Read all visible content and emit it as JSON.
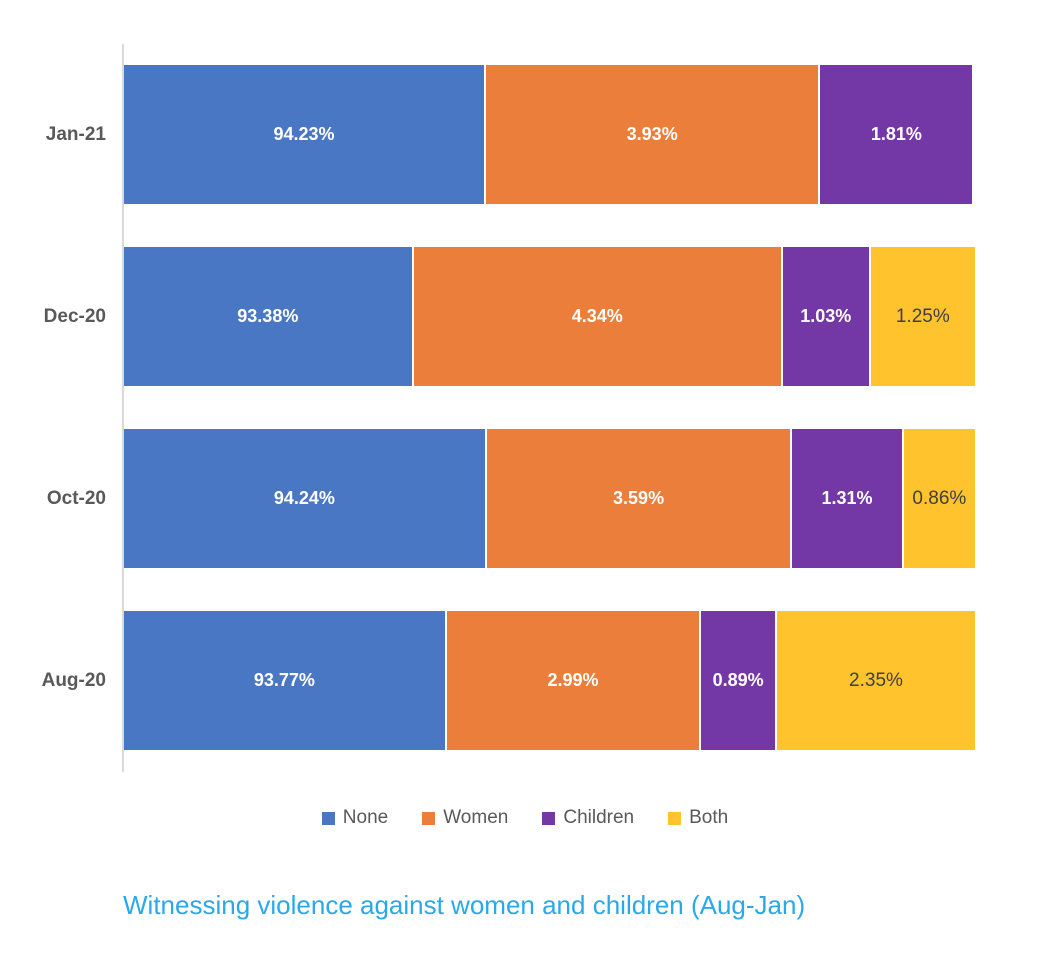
{
  "chart_data": {
    "type": "bar",
    "orientation": "horizontal-stacked",
    "title": "Witnessing violence against women and children (Aug-Jan)",
    "title_color": "#29a9ea",
    "categories": [
      "Jan-21",
      "Dec-20",
      "Oct-20",
      "Aug-20"
    ],
    "axis": {
      "min": 90,
      "max": 100,
      "gridlines": false,
      "axis_line_color": "#d9d9d9"
    },
    "legend_position": "bottom",
    "legend": [
      "None",
      "Women",
      "Children",
      "Both"
    ],
    "series_colors": {
      "None": "#4a77c4",
      "Women": "#ec7e3b",
      "Children": "#7337a6",
      "Both": "#fec32d"
    },
    "label_text_colors": {
      "on_dark_segment": "#ffffff",
      "on_yellow_segment": "#3f3f3f"
    },
    "series": [
      {
        "name": "None",
        "values": [
          94.23,
          93.38,
          94.24,
          93.77
        ]
      },
      {
        "name": "Women",
        "values": [
          3.93,
          4.34,
          3.59,
          2.99
        ]
      },
      {
        "name": "Children",
        "values": [
          1.81,
          1.03,
          1.31,
          0.89
        ]
      },
      {
        "name": "Both",
        "values": [
          null,
          1.25,
          0.86,
          2.35
        ]
      }
    ],
    "rows": [
      {
        "category": "Jan-21",
        "segments": [
          {
            "series": "None",
            "value": 94.23,
            "label": "94.23%"
          },
          {
            "series": "Women",
            "value": 3.93,
            "label": "3.93%"
          },
          {
            "series": "Children",
            "value": 1.81,
            "label": "1.81%"
          }
        ]
      },
      {
        "category": "Dec-20",
        "segments": [
          {
            "series": "None",
            "value": 93.38,
            "label": "93.38%"
          },
          {
            "series": "Women",
            "value": 4.34,
            "label": "4.34%"
          },
          {
            "series": "Children",
            "value": 1.03,
            "label": "1.03%"
          },
          {
            "series": "Both",
            "value": 1.25,
            "label": "1.25%"
          }
        ]
      },
      {
        "category": "Oct-20",
        "segments": [
          {
            "series": "None",
            "value": 94.24,
            "label": "94.24%"
          },
          {
            "series": "Women",
            "value": 3.59,
            "label": "3.59%"
          },
          {
            "series": "Children",
            "value": 1.31,
            "label": "1.31%"
          },
          {
            "series": "Both",
            "value": 0.86,
            "label": "0.86%"
          }
        ]
      },
      {
        "category": "Aug-20",
        "segments": [
          {
            "series": "None",
            "value": 93.77,
            "label": "93.77%"
          },
          {
            "series": "Women",
            "value": 2.99,
            "label": "2.99%"
          },
          {
            "series": "Children",
            "value": 0.89,
            "label": "0.89%"
          },
          {
            "series": "Both",
            "value": 2.35,
            "label": "2.35%"
          }
        ]
      }
    ]
  }
}
